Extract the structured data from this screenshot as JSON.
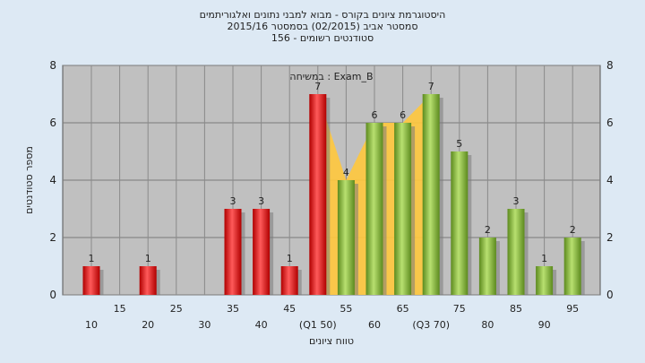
{
  "title_lines": [
    "היסטוגרמת ציונים בקורס - מבוא למבני נתונים ואלגוריתמים",
    "2015/16  סמסטר אביב  (02/2015)  בסמסטר",
    "סטודנטים רשומים - 156"
  ],
  "chart_data": {
    "type": "bar",
    "xlabel": "טווח ציונים",
    "ylabel": "מספר סטודנטים",
    "annotation": "במשיחה : Exam_B",
    "ylim": [
      0,
      8
    ],
    "yticks": [
      0,
      2,
      4,
      6,
      8
    ],
    "grid": true,
    "categories": [
      "10",
      "15",
      "20",
      "25",
      "30",
      "35",
      "40",
      "45",
      "50",
      "55",
      "60",
      "65",
      "70",
      "75",
      "80",
      "85",
      "90",
      "95"
    ],
    "x_tick_labels": [
      "10",
      "15",
      "20",
      "25",
      "30",
      "35",
      "40",
      "45",
      "(Q1 50)",
      "55",
      "60",
      "65",
      "(Q3 70)",
      "75",
      "80",
      "85",
      "90",
      "95"
    ],
    "values": [
      1,
      0,
      1,
      0,
      0,
      3,
      3,
      1,
      7,
      4,
      6,
      6,
      7,
      5,
      2,
      3,
      1,
      2
    ],
    "bar_groups": [
      "red",
      "red",
      "red",
      "red",
      "red",
      "red",
      "red",
      "red",
      "red",
      "green",
      "green",
      "green",
      "green",
      "green",
      "green",
      "green",
      "green",
      "green"
    ],
    "interquartile_band": {
      "from": "50",
      "to": "70"
    },
    "colors": {
      "red": "#e02020",
      "green": "#8ab83a",
      "band": "#ffc83d",
      "plot_bg": "#c0c0c0",
      "page_bg": "#dde9f4"
    }
  }
}
